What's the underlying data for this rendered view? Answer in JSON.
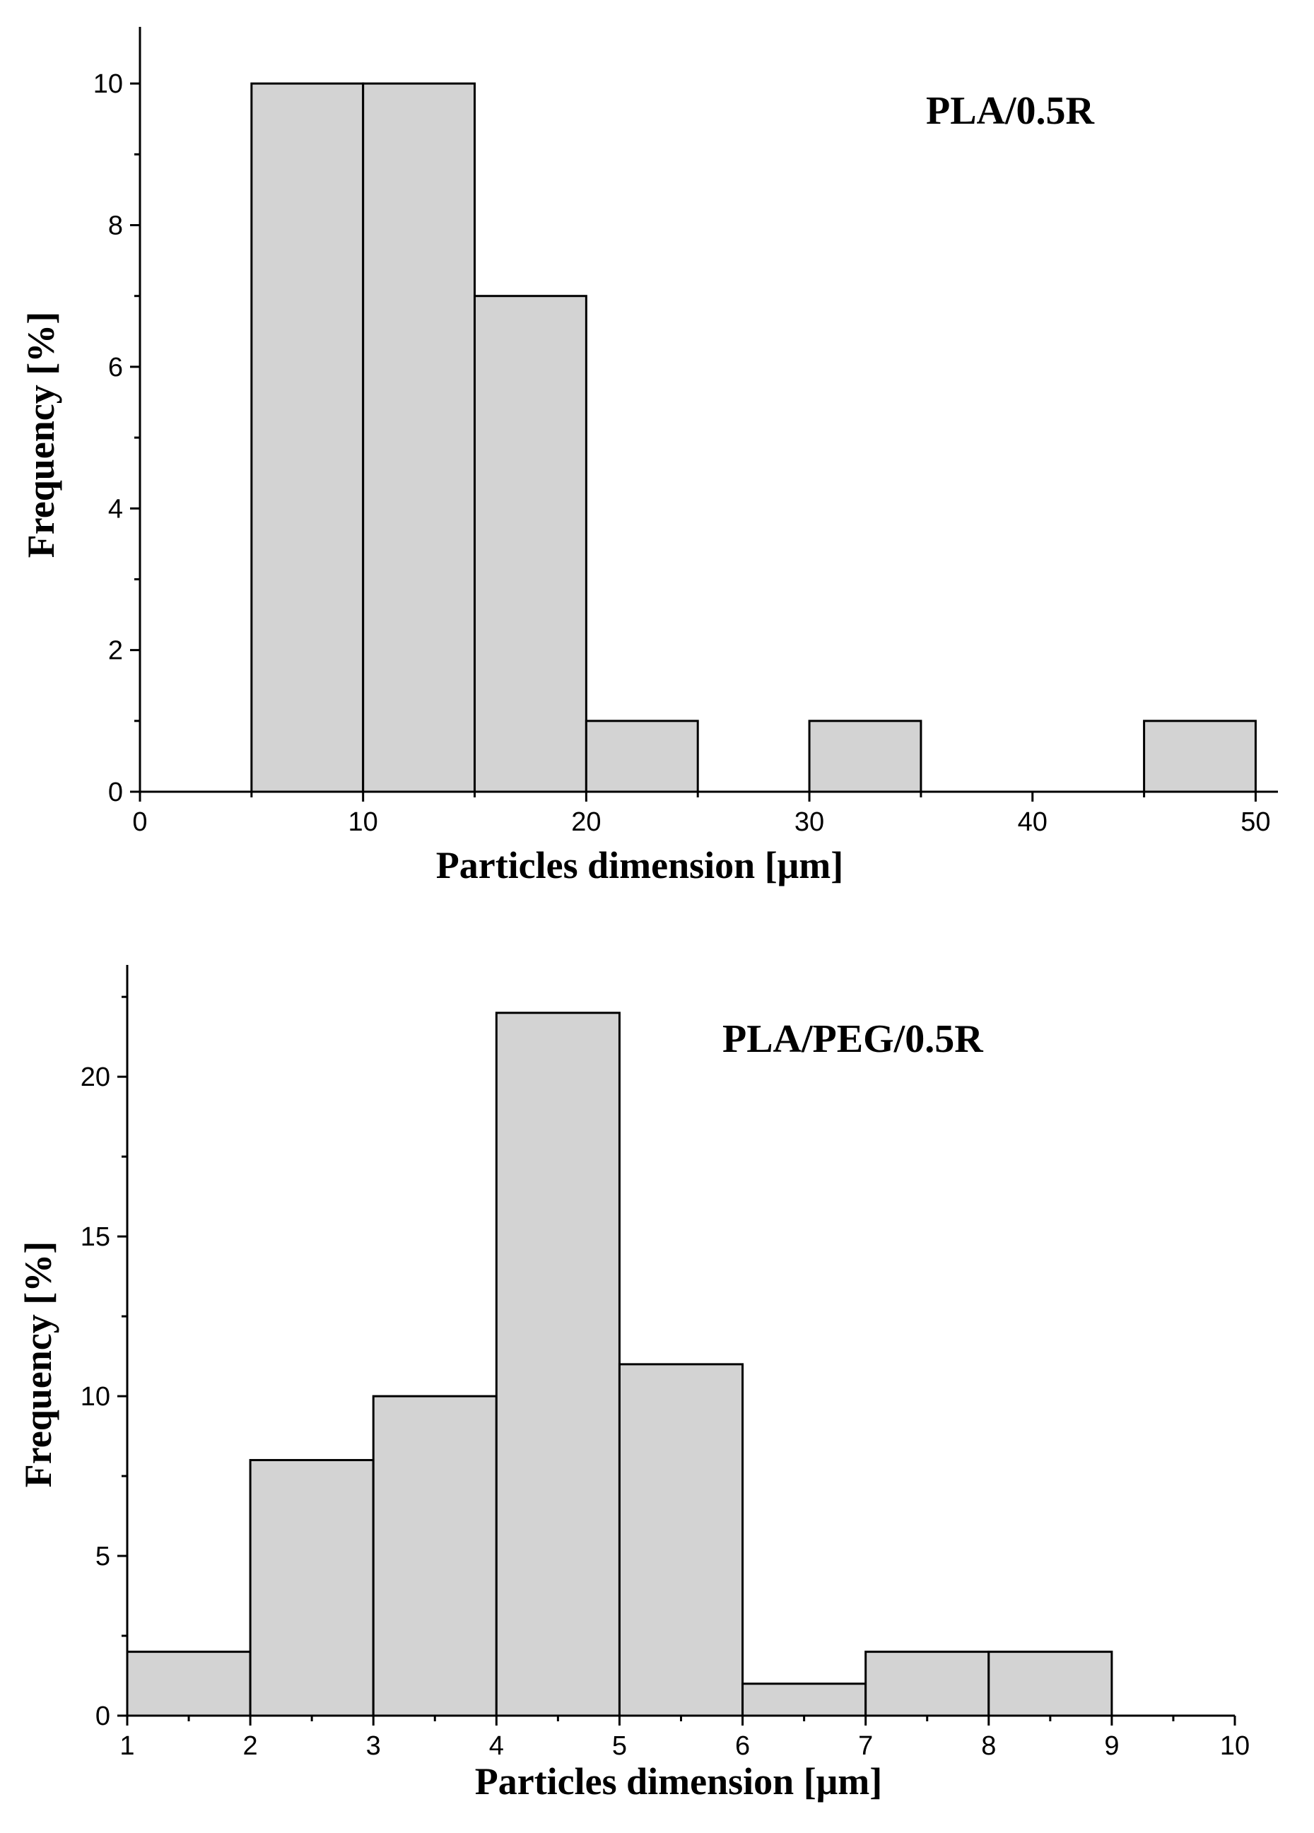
{
  "chart_data": [
    {
      "type": "bar",
      "panel_label": "PLA/0.5R",
      "xlabel": "Particles dimension [μm]",
      "ylabel": "Frequency [%]",
      "xlim": [
        0,
        51
      ],
      "ylim": [
        0,
        10.8
      ],
      "xticks": [
        0,
        10,
        20,
        30,
        40,
        50
      ],
      "xtick_labels": [
        "0",
        "10",
        "20",
        "30",
        "40",
        "50"
      ],
      "xminor_step": 5,
      "yticks": [
        0,
        2,
        4,
        6,
        8,
        10
      ],
      "ytick_labels": [
        "0",
        "2",
        "4",
        "6",
        "8",
        "10"
      ],
      "yminor_step": 1,
      "bins": [
        {
          "start": 5,
          "end": 10,
          "value": 10
        },
        {
          "start": 10,
          "end": 15,
          "value": 10
        },
        {
          "start": 15,
          "end": 20,
          "value": 7
        },
        {
          "start": 20,
          "end": 25,
          "value": 1
        },
        {
          "start": 30,
          "end": 35,
          "value": 1
        },
        {
          "start": 45,
          "end": 50,
          "value": 1
        }
      ],
      "bar_color": "#d3d3d3",
      "grid": false,
      "legend": "none"
    },
    {
      "type": "bar",
      "panel_label": "PLA/PEG/0.5R",
      "xlabel": "Particles dimension [μm]",
      "ylabel": "Frequency [%]",
      "xlim": [
        1,
        10
      ],
      "ylim": [
        0,
        23.5
      ],
      "xticks": [
        1,
        2,
        3,
        4,
        5,
        6,
        7,
        8,
        9,
        10
      ],
      "xtick_labels": [
        "1",
        "2",
        "3",
        "4",
        "5",
        "6",
        "7",
        "8",
        "9",
        "10"
      ],
      "xminor_step": 0.5,
      "yticks": [
        0,
        5,
        10,
        15,
        20
      ],
      "ytick_labels": [
        "0",
        "5",
        "10",
        "15",
        "20"
      ],
      "yminor_step": 2.5,
      "bins": [
        {
          "start": 1,
          "end": 2,
          "value": 2
        },
        {
          "start": 2,
          "end": 3,
          "value": 8
        },
        {
          "start": 3,
          "end": 4,
          "value": 10
        },
        {
          "start": 4,
          "end": 5,
          "value": 22
        },
        {
          "start": 5,
          "end": 6,
          "value": 11
        },
        {
          "start": 6,
          "end": 7,
          "value": 1
        },
        {
          "start": 7,
          "end": 8,
          "value": 2
        },
        {
          "start": 8,
          "end": 9,
          "value": 2
        }
      ],
      "bar_color": "#d3d3d3",
      "grid": false,
      "legend": "none"
    }
  ]
}
